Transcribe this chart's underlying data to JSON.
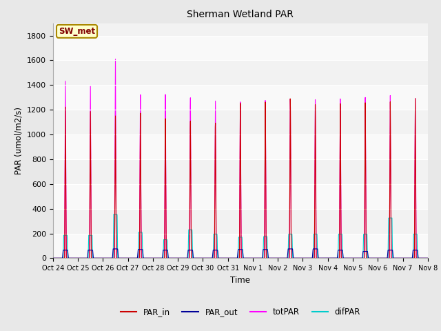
{
  "title": "Sherman Wetland PAR",
  "ylabel": "PAR (umol/m2/s)",
  "xlabel": "Time",
  "annotation": "SW_met",
  "ylim": [
    0,
    1900
  ],
  "yticks": [
    0,
    200,
    400,
    600,
    800,
    1000,
    1200,
    1400,
    1600,
    1800
  ],
  "bg_color": "#e8e8e8",
  "plot_bg_color": "#f2f2f2",
  "legend_labels": [
    "PAR_in",
    "PAR_out",
    "totPAR",
    "difPAR"
  ],
  "legend_colors": [
    "#cc0000",
    "#000099",
    "#ff00ff",
    "#00cccc"
  ],
  "num_days": 15,
  "day_labels": [
    "Oct 24",
    "Oct 25",
    "Oct 26",
    "Oct 27",
    "Oct 28",
    "Oct 29",
    "Oct 30",
    "Oct 31",
    "Nov 1",
    "Nov 2",
    "Nov 3",
    "Nov 4",
    "Nov 5",
    "Nov 6",
    "Nov 7",
    "Nov 8"
  ],
  "PAR_in_peaks": [
    1230,
    1210,
    1190,
    1230,
    1200,
    1195,
    1195,
    1390,
    1380,
    1390,
    1320,
    1310,
    1300,
    1290,
    1300
  ],
  "totPAR_peaks": [
    1440,
    1415,
    1660,
    1380,
    1400,
    1390,
    1380,
    1390,
    1385,
    1380,
    1355,
    1345,
    1340,
    1340,
    1300
  ],
  "difPAR_peaks": [
    185,
    185,
    355,
    210,
    150,
    230,
    195,
    170,
    175,
    195,
    195,
    195,
    195,
    325,
    195
  ],
  "PAR_out_peaks": [
    65,
    65,
    75,
    70,
    65,
    65,
    65,
    70,
    70,
    75,
    75,
    65,
    55,
    65,
    65
  ]
}
